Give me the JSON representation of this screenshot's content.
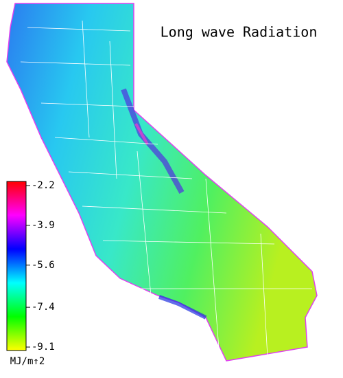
{
  "map": {
    "title": "Long wave Radiation",
    "colorbar": {
      "label": "MJ/m↑2",
      "lim": [
        -9.1,
        -2.2
      ],
      "ticks": [
        -2.2,
        -3.9,
        -5.6,
        -7.4,
        -9.1
      ],
      "colors": [
        "#ffff00",
        "#00ff00",
        "#00ffff",
        "#0000ff",
        "#ff00ff",
        "#ff0000"
      ]
    }
  }
}
